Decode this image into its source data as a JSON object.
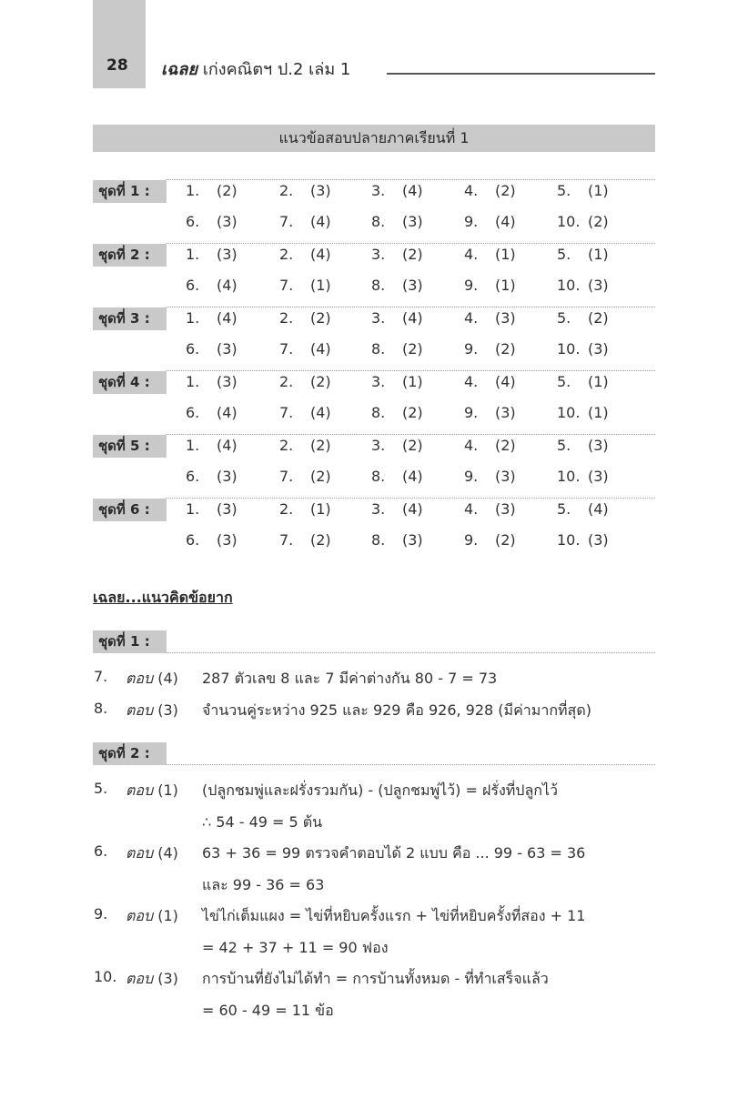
{
  "header": {
    "page_number": "28",
    "book_bold": "เฉลย",
    "book_title": "เก่งคณิตฯ ป.2 เล่ม 1"
  },
  "section_title": "แนวข้อสอบปลายภาคเรียนที่ 1",
  "answer_sets": [
    {
      "label": "ชุดที่ 1 :",
      "answers": [
        "(2)",
        "(3)",
        "(4)",
        "(2)",
        "(1)",
        "(3)",
        "(4)",
        "(3)",
        "(4)",
        "(2)"
      ]
    },
    {
      "label": "ชุดที่ 2 :",
      "answers": [
        "(3)",
        "(4)",
        "(2)",
        "(1)",
        "(1)",
        "(4)",
        "(1)",
        "(3)",
        "(1)",
        "(3)"
      ]
    },
    {
      "label": "ชุดที่ 3 :",
      "answers": [
        "(4)",
        "(2)",
        "(4)",
        "(3)",
        "(2)",
        "(3)",
        "(4)",
        "(2)",
        "(2)",
        "(3)"
      ]
    },
    {
      "label": "ชุดที่ 4 :",
      "answers": [
        "(3)",
        "(2)",
        "(1)",
        "(4)",
        "(1)",
        "(4)",
        "(4)",
        "(2)",
        "(3)",
        "(1)"
      ]
    },
    {
      "label": "ชุดที่ 5 :",
      "answers": [
        "(4)",
        "(2)",
        "(2)",
        "(2)",
        "(3)",
        "(3)",
        "(2)",
        "(4)",
        "(3)",
        "(3)"
      ]
    },
    {
      "label": "ชุดที่ 6 :",
      "answers": [
        "(3)",
        "(1)",
        "(4)",
        "(3)",
        "(4)",
        "(3)",
        "(2)",
        "(3)",
        "(2)",
        "(3)"
      ]
    }
  ],
  "question_numbers": [
    "1.",
    "2.",
    "3.",
    "4.",
    "5.",
    "6.",
    "7.",
    "8.",
    "9.",
    "10."
  ],
  "explanations_heading": "เฉลย...แนวคิดข้อยาก",
  "answer_word": "ตอบ",
  "explanations": [
    {
      "label": "ชุดที่ 1 :",
      "items": [
        {
          "number": "7.",
          "choice": "(4)",
          "lines": [
            "287 ตัวเลข 8 และ 7 มีค่าต่างกัน 80 - 7 = 73"
          ]
        },
        {
          "number": "8.",
          "choice": "(3)",
          "lines": [
            "จำนวนคู่ระหว่าง 925 และ 929 คือ 926, 928 (มีค่ามากที่สุด)"
          ]
        }
      ]
    },
    {
      "label": "ชุดที่ 2 :",
      "items": [
        {
          "number": "5.",
          "choice": "(1)",
          "lines": [
            "(ปลูกชมพู่และฝรั่งรวมกัน) - (ปลูกชมพู่ไว้) = ฝรั่งที่ปลูกไว้",
            "∴ 54 - 49 = 5 ต้น"
          ]
        },
        {
          "number": "6.",
          "choice": "(4)",
          "lines": [
            "63 + 36 = 99  ตรวจคำตอบได้ 2 แบบ คือ ... 99 - 63 = 36",
            "และ 99 - 36 = 63"
          ]
        },
        {
          "number": "9.",
          "choice": "(1)",
          "lines": [
            "ไข่ไก่เต็มแผง = ไข่ที่หยิบครั้งแรก + ไข่ที่หยิบครั้งที่สอง + 11",
            "= 42 + 37 + 11 = 90 ฟอง"
          ]
        },
        {
          "number": "10.",
          "choice": "(3)",
          "lines": [
            "การบ้านที่ยังไม่ได้ทำ = การบ้านทั้งหมด - ที่ทำเสร็จแล้ว",
            "= 60 - 49 = 11 ข้อ"
          ]
        }
      ]
    }
  ]
}
